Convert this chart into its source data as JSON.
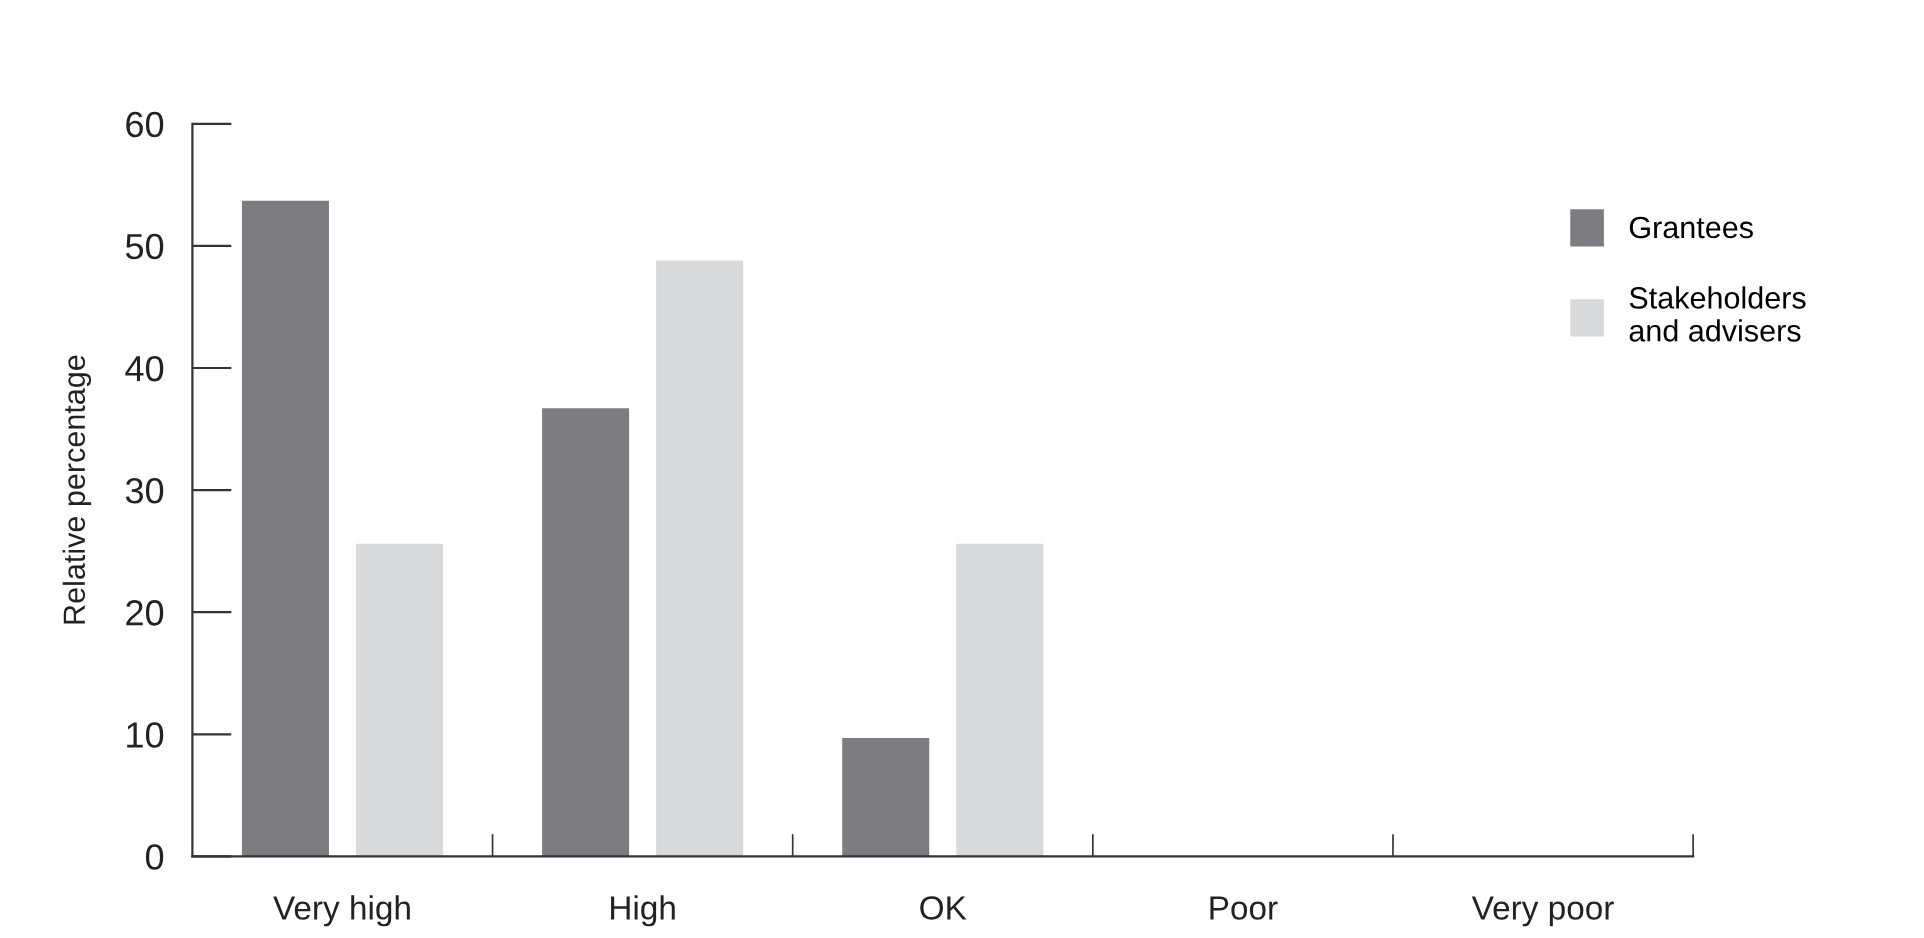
{
  "chart_data": {
    "type": "bar",
    "ylabel": "Relative percentage",
    "categories": [
      "Very high",
      "High",
      "OK",
      "Poor",
      "Very poor"
    ],
    "series": [
      {
        "name": "Grantees",
        "color": "#7d7c81",
        "values": [
          53.7,
          36.7,
          9.7,
          0,
          0
        ]
      },
      {
        "name": "Stakeholders\nand advisers",
        "color": "#d8d9db",
        "values": [
          25.6,
          48.8,
          25.6,
          0,
          0
        ]
      }
    ],
    "ylim": [
      0,
      60
    ],
    "yticks": [
      0,
      10,
      20,
      30,
      40,
      50,
      60
    ],
    "grid": false,
    "legend": "top right"
  }
}
